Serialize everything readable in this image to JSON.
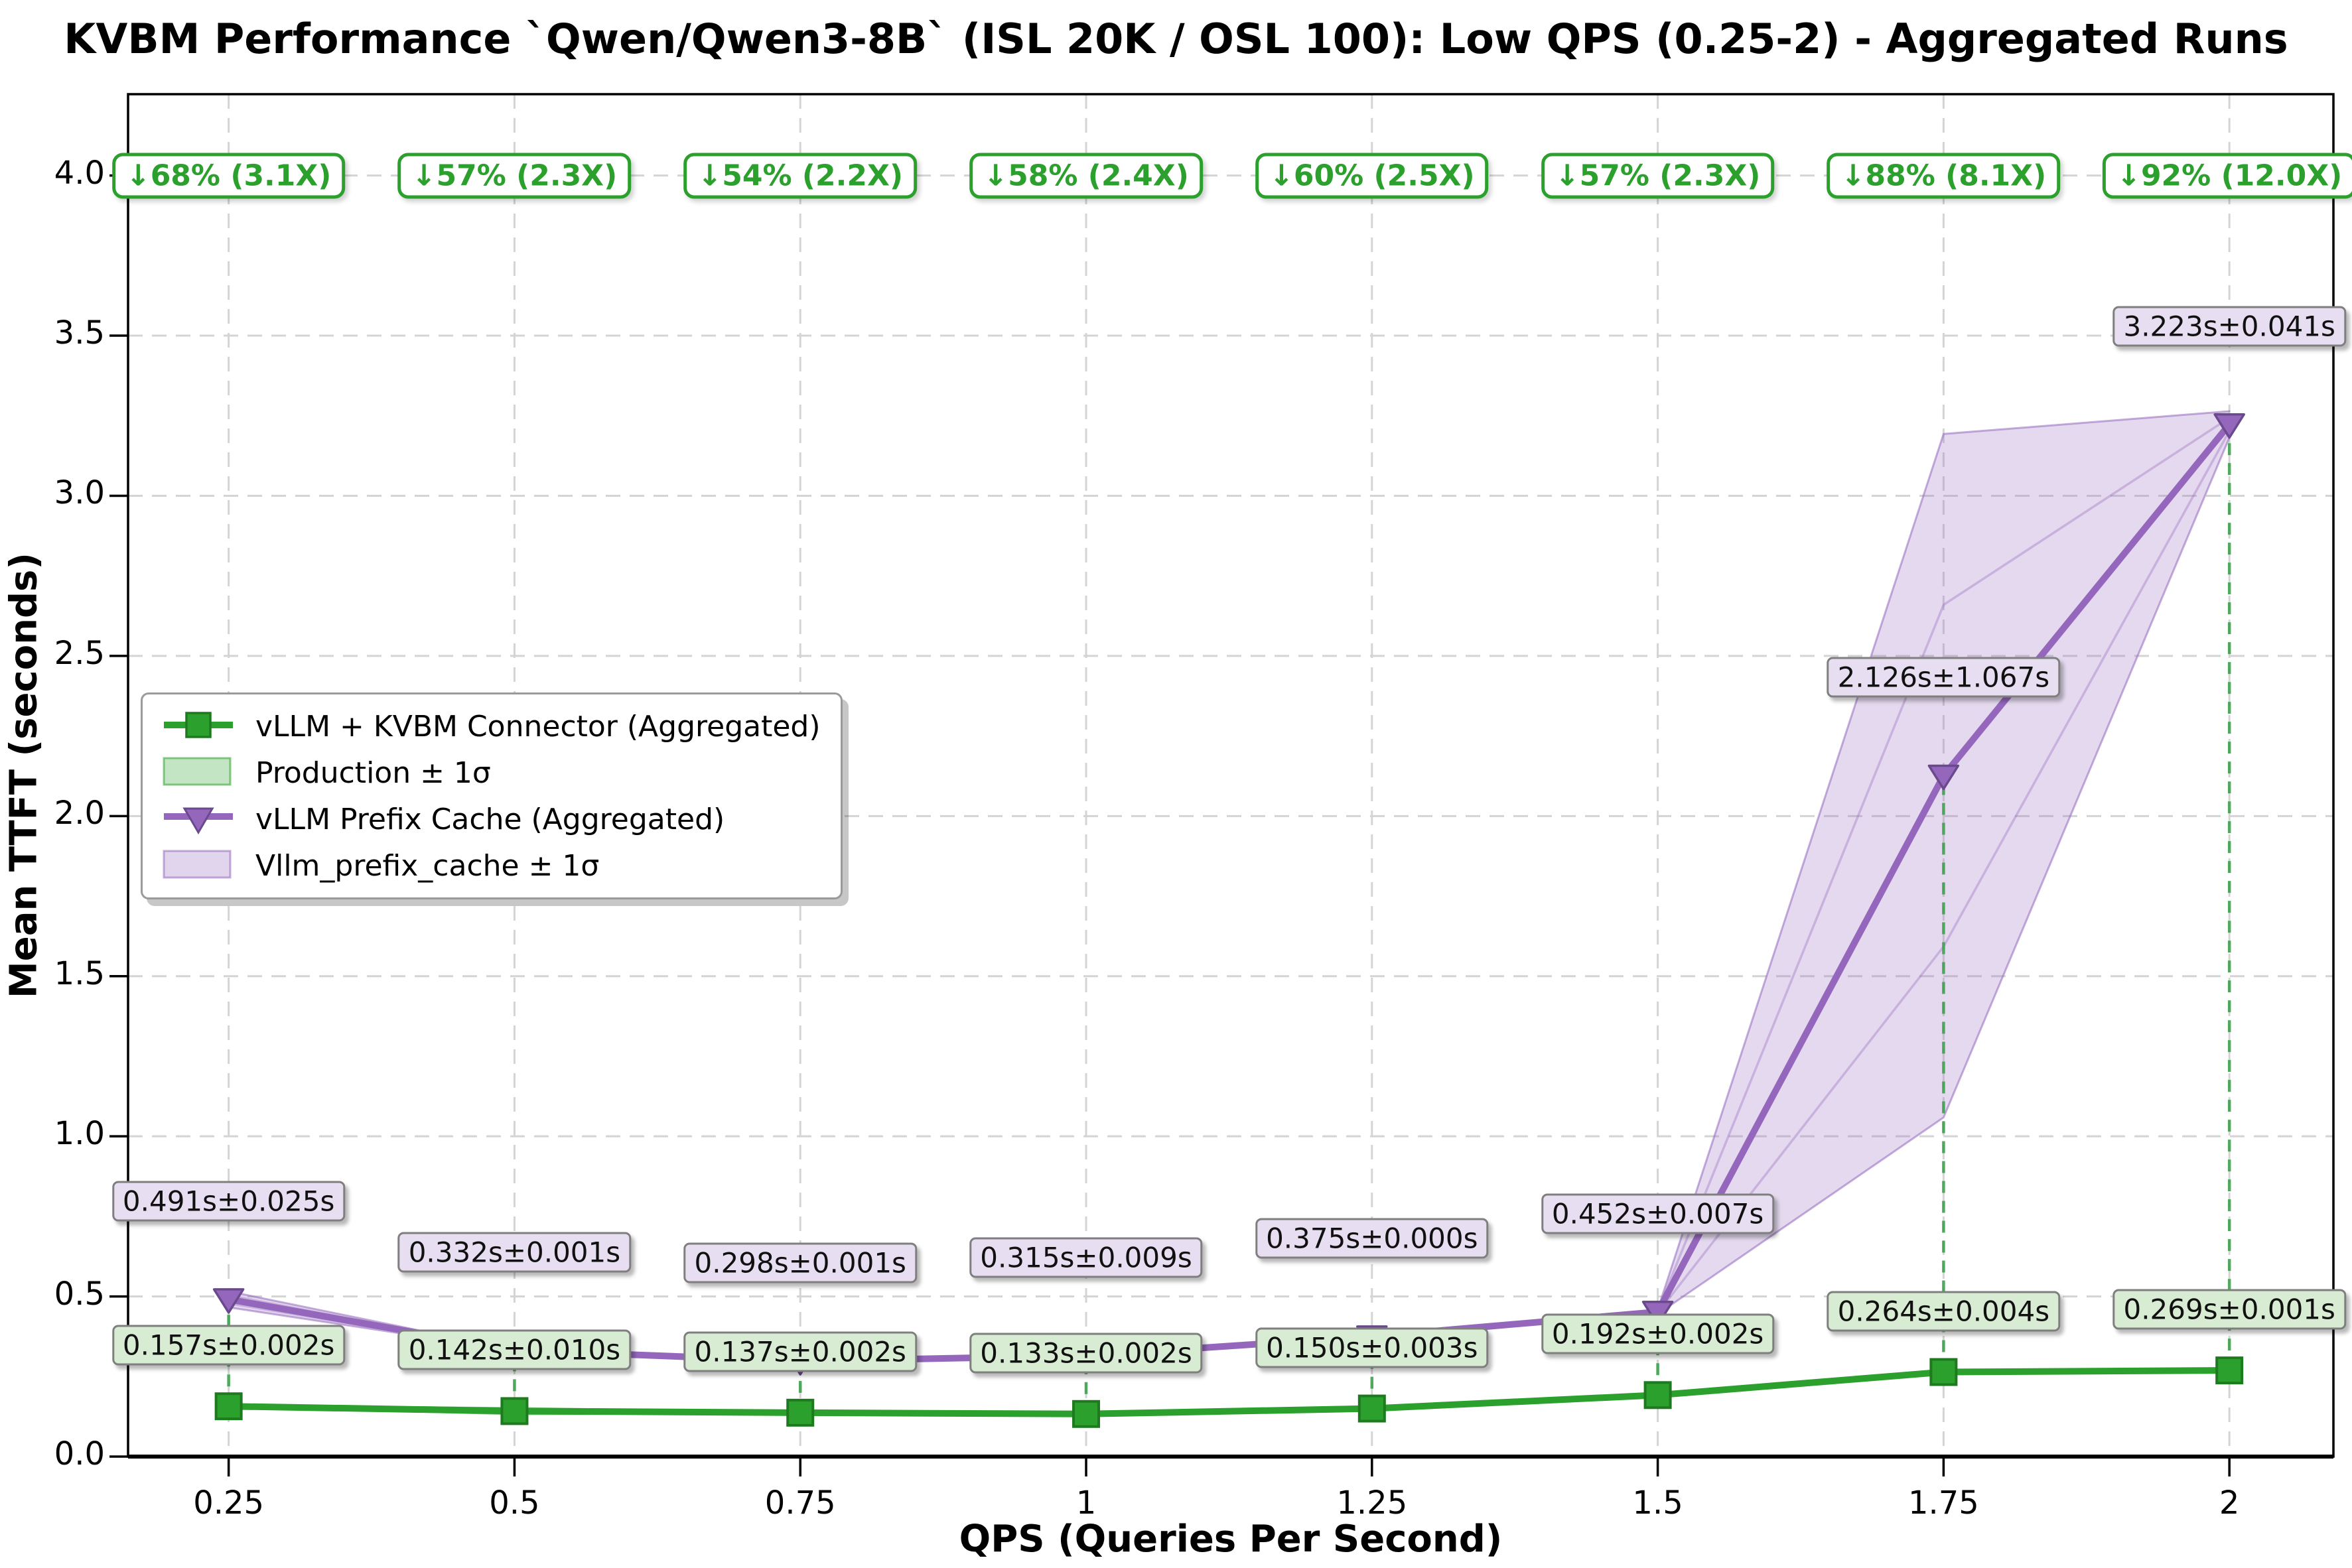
{
  "title": "KVBM Performance `Qwen/Qwen3-8B` (ISL 20K / OSL 100): Low QPS (0.25-2) - Aggregated Runs",
  "axes": {
    "x_label": "QPS (Queries Per Second)",
    "y_label": "Mean TTFT (seconds)",
    "x_ticks": [
      "0.25",
      "0.5",
      "0.75",
      "1",
      "1.25",
      "1.5",
      "1.75",
      "2"
    ],
    "y_ticks": [
      "0.0",
      "0.5",
      "1.0",
      "1.5",
      "2.0",
      "2.5",
      "3.0",
      "3.5",
      "4.0"
    ]
  },
  "legend": {
    "items": [
      {
        "label": "vLLM + KVBM Connector (Aggregated)",
        "swatch": "line-square",
        "color": "#2ca02c"
      },
      {
        "label": "Production ± 1σ",
        "swatch": "patch",
        "color": "#2ca02c"
      },
      {
        "label": "vLLM Prefix Cache (Aggregated)",
        "swatch": "line-triangle",
        "color": "#9467bd"
      },
      {
        "label": "Vllm_prefix_cache ± 1σ",
        "swatch": "patch",
        "color": "#9467bd"
      }
    ]
  },
  "colors": {
    "kvbm_green": "#2ca02c",
    "kvbm_green_edge": "#1e7a1e",
    "prefix_purple": "#9467bd",
    "prefix_purple_edge": "#6a4a8c",
    "green_band": "rgba(44,160,44,0.22)",
    "purple_band": "rgba(148,103,189,0.25)",
    "grid": "#d4d4d4",
    "connector_green": "#3fa34d",
    "annotation_green": "#2ca02c",
    "label_border": "#7f7f7f",
    "purple_label_bg": "#e7def1",
    "green_label_bg": "#d7ecd2"
  },
  "chart_data": {
    "type": "line",
    "title": "KVBM Performance `Qwen/Qwen3-8B` (ISL 20K / OSL 100): Low QPS (0.25-2) - Aggregated Runs",
    "xlabel": "QPS (Queries Per Second)",
    "ylabel": "Mean TTFT (seconds)",
    "x": [
      0.25,
      0.5,
      0.75,
      1,
      1.25,
      1.5,
      1.75,
      2
    ],
    "xlim": [
      0.162,
      2.091
    ],
    "ylim": [
      0,
      4.254
    ],
    "y_tick_values": [
      0,
      0.5,
      1,
      1.5,
      2,
      2.5,
      3,
      3.5,
      4
    ],
    "grid": true,
    "legend_position": "center left",
    "series": [
      {
        "name": "vLLM + KVBM Connector (Aggregated)",
        "marker": "square",
        "mean": [
          0.157,
          0.142,
          0.137,
          0.133,
          0.15,
          0.192,
          0.264,
          0.269
        ],
        "std": [
          0.002,
          0.01,
          0.002,
          0.002,
          0.003,
          0.002,
          0.004,
          0.001
        ],
        "point_labels": [
          "0.157s±0.002s",
          "0.142s±0.010s",
          "0.137s±0.002s",
          "0.133s±0.002s",
          "0.150s±0.003s",
          "0.192s±0.002s",
          "0.264s±0.004s",
          "0.269s±0.001s"
        ]
      },
      {
        "name": "vLLM Prefix Cache (Aggregated)",
        "marker": "triangle-down",
        "mean": [
          0.491,
          0.332,
          0.298,
          0.315,
          0.375,
          0.452,
          2.126,
          3.223
        ],
        "std": [
          0.025,
          0.001,
          0.001,
          0.009,
          0.0,
          0.007,
          1.067,
          0.041
        ],
        "point_labels": [
          "0.491s±0.025s",
          "0.332s±0.001s",
          "0.298s±0.001s",
          "0.315s±0.009s",
          "0.375s±0.000s",
          "0.452s±0.007s",
          "2.126s±1.067s",
          "3.223s±0.041s"
        ]
      }
    ],
    "reduction_annotations": [
      "↓68% (3.1X)",
      "↓57% (2.3X)",
      "↓54% (2.2X)",
      "↓58% (2.4X)",
      "↓60% (2.5X)",
      "↓57% (2.3X)",
      "↓88% (8.1X)",
      "↓92% (12.0X)"
    ]
  }
}
